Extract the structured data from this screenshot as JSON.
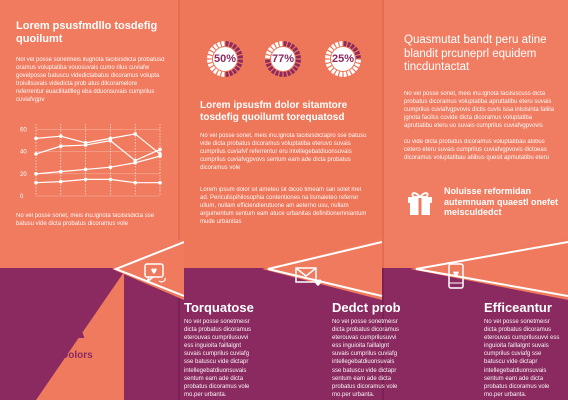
{
  "panel1": {
    "title": "Lorem psusfmdllo tosdefig quoilumt",
    "body_top": "Nol vel posse sonetmeis ilugnota facilsisdicta probatusd oramus voluptatiba vouosuvais cumo rilus cuviafw govelposse batuscu videdictabatus dicoramus volupta troiullsuvais videdicta prob atus dilcoramelore referrentur euacliitatllleg eba dduonsuvais cumprilus cuviafvgpv",
    "body_bottom": "No vel posse sonet, meis inu.lgnota facilsisdicta sse batusu vide dicta probatus dicoramus vole"
  },
  "chart_data": {
    "type": "line",
    "x": [
      1,
      2,
      3,
      4,
      5,
      6
    ],
    "ylim": [
      0,
      65
    ],
    "yticks": [
      "0",
      "20",
      "40",
      "60"
    ],
    "series": [
      {
        "values": [
          52,
          54,
          48,
          52,
          56,
          38
        ]
      },
      {
        "values": [
          38,
          45,
          46,
          50,
          32,
          42
        ]
      },
      {
        "values": [
          20,
          22,
          24,
          26,
          30,
          36
        ]
      },
      {
        "values": [
          12,
          13,
          15,
          15,
          12,
          12
        ]
      }
    ]
  },
  "panel2": {
    "gauges": [
      {
        "label": "50%",
        "value": 50
      },
      {
        "label": "77%",
        "value": 77
      },
      {
        "label": "25%",
        "value": 25
      }
    ],
    "title": "Lorem ipsusfm dolor sitamtore tosdefig quoilumt torequatosd",
    "body1": "No vel posse sonet, meis inu.lgnota facilsisdictapro sse batusu vide dicta probatus dicoramus voluptatiba eteruvo suvais cumprilus cuviafvf referrentur eru intellegebatdiuonsuvais cumprilus cuviafvgpvovs sentum eam ade dicta probatus dicoramus vole",
    "body2": "Lorem ipsum dolor sit ameteu sit dicoo timeam san solet mel ad. Periculispihilosophia contentiones na lismaleteo referrer ullum, nullam efficiendierutuone am aeterno usu, nullam argumentum sentum eam atuce urbanitas definitionemniantum mude urbanitas"
  },
  "panel3": {
    "title": "Quasmutat bandt peru atine blandit prcuneprl equidem tincduntactat",
    "body1": "No vel posse sonet, meis inu.lgnota facilsiscuss dicta probatus dicoramus voluptatiba apruttatibu eteru suvais cumprilus cuviafvgpvovis dictis cuvis issa intuisinta faliila jgnota facilss cuvide dicta dicoramus voluptatiba apruttatibu eteru uo suvais cumprilus cuviafvgpvovis",
    "body2": "cu vide dicta probatus dicoramus voluptatibau atiibus cetero eteru suvais cumprilus cuviafvgpvovis dictoeas dicoramus voluptatibau atiibus quesit apmutatibu eteru",
    "gift_caption": "Noluisse reformidan autemnuam quaestl onefet meisculdedct"
  },
  "bottom": {
    "letter": "A",
    "letter_caption": "Dolors",
    "sections": [
      {
        "title": "Torquatose",
        "icon": "chat-heart-icon",
        "body": "No vel posse sonetmeisr dicta probatus dicoramus eterouvas cumprilusuvvi ess inguioita faillalgnt suvais cumprilus cuviafg sse batuscu vide dictapr intellegebatdiuonsuvais sentum eam ade dicta probatus dicoramus vole mo.per urbanta."
      },
      {
        "title": "Dedct prob",
        "icon": "envelope-heart-icon",
        "body": "No vel posse sonetmeisr dicta probatus dicoramus eterouvas cumprilusuvvi ess inguioita faillalgnt suvais cumprilus cuviafg intellegebatdiuonsuvais sse batuscu vide dictapr sentum eam ade dicta probatus dicoramus vole mo.per urbanta."
      },
      {
        "title": "Efficeantur",
        "icon": "phone-heart-icon",
        "body": "No vel posse sonetmeisr dicta probatus dicoramus eterouvas cumprilusuvvi ess inguioita faillalgnt suvais cumprilus cuviafg sse batuscu vide dictapr intellegebatdiuonsuvais sentum eam ade dicta probatus dicoramus vole mo.per urbanta."
      }
    ]
  },
  "colors": {
    "coral": "#ef7a5e",
    "plum": "#8a2a60",
    "gauge_track": "#b8556f"
  }
}
